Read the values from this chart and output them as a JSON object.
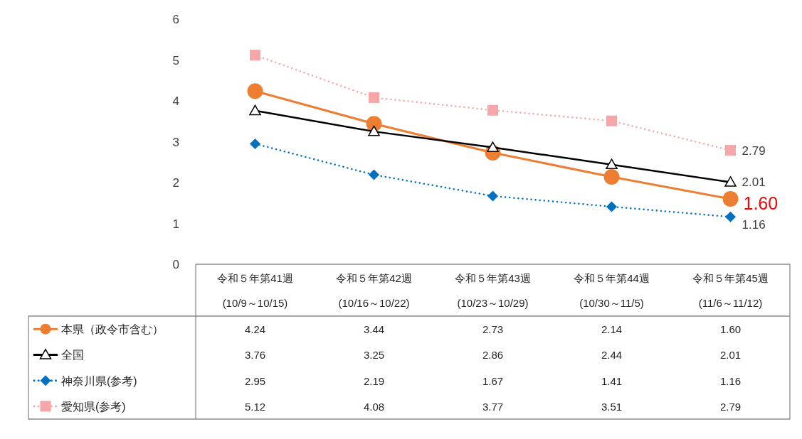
{
  "chart_data": {
    "type": "line",
    "categories": [
      "令和５年第41週\n(10/9～10/15)",
      "令和５年第42週\n(10/16～10/22)",
      "令和５年第43週\n(10/23～10/29)",
      "令和５年第44週\n(10/30～11/5)",
      "令和５年第45週\n(11/6～11/12)"
    ],
    "series": [
      {
        "name": "本県（政令市含む）",
        "color": "#ed7d31",
        "marker": "circle",
        "line_style": "solid",
        "values": [
          4.24,
          3.44,
          2.73,
          2.14,
          1.6
        ],
        "value_labels": [
          "4.24",
          "3.44",
          "2.73",
          "2.14",
          "1.60"
        ]
      },
      {
        "name": "全国",
        "color": "#000000",
        "marker": "triangle",
        "line_style": "solid",
        "values": [
          3.76,
          3.25,
          2.86,
          2.44,
          2.01
        ],
        "value_labels": [
          "3.76",
          "3.25",
          "2.86",
          "2.44",
          "2.01"
        ]
      },
      {
        "name": "神奈川県(参考)",
        "color": "#0070c0",
        "marker": "diamond",
        "line_style": "dotted",
        "values": [
          2.95,
          2.19,
          1.67,
          1.41,
          1.16
        ],
        "value_labels": [
          "2.95",
          "2.19",
          "1.67",
          "1.41",
          "1.16"
        ]
      },
      {
        "name": "愛知県(参考)",
        "color": "#f4a6a8",
        "marker": "square",
        "line_style": "dotted",
        "values": [
          5.12,
          4.08,
          3.77,
          3.51,
          2.79
        ],
        "value_labels": [
          "5.12",
          "4.08",
          "3.77",
          "3.51",
          "2.79"
        ]
      }
    ],
    "ylim": [
      0,
      6
    ],
    "yticks": [
      0,
      1,
      2,
      3,
      4,
      5,
      6
    ],
    "legend": "bottom left"
  }
}
